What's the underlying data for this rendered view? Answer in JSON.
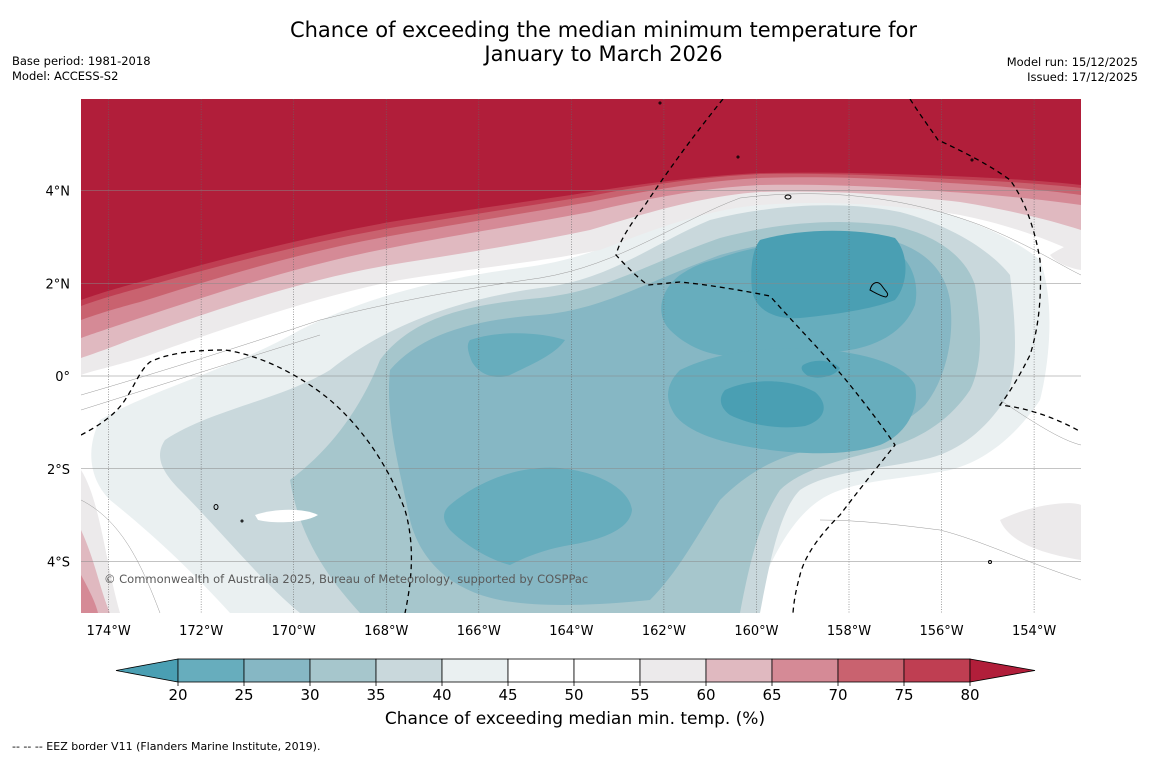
{
  "title": {
    "line1": "Chance of exceeding the median minimum temperature for",
    "line2": "January to March 2026"
  },
  "meta_left": {
    "base_period": "Base period: 1981-2018",
    "model": "Model: ACCESS-S2"
  },
  "meta_right": {
    "model_run": "Model run: 15/12/2025",
    "issued": "Issued: 17/12/2025"
  },
  "map": {
    "lon_labels": [
      "174°W",
      "172°W",
      "170°W",
      "168°W",
      "166°W",
      "164°W",
      "162°W",
      "160°W",
      "158°W",
      "156°W",
      "154°W"
    ],
    "lat_labels": [
      "4°N",
      "2°N",
      "0°",
      "2°S",
      "4°S"
    ],
    "copyright": "© Commonwealth of Australia 2025, Bureau of Meteorology, supported by COSPPac"
  },
  "colorbar": {
    "ticks": [
      "20",
      "25",
      "30",
      "35",
      "40",
      "45",
      "50",
      "55",
      "60",
      "65",
      "70",
      "75",
      "80"
    ],
    "colors": [
      "#4a9fb3",
      "#67adbd",
      "#86b7c4",
      "#a6c6cc",
      "#c9d8dc",
      "#eaf0f1",
      "#ffffff",
      "#ffffff",
      "#eceaeb",
      "#e0b9c0",
      "#d58a96",
      "#c9626f",
      "#bf3e52",
      "#b11e3a"
    ],
    "title": "Chance of exceeding median min. temp. (%)"
  },
  "footnote": "--  --  -- EEZ border V11 (Flanders Marine Institute, 2019)."
}
